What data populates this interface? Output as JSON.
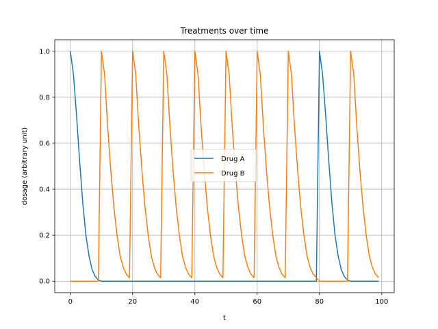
{
  "chart_data": {
    "type": "line",
    "title": "Treatments over time",
    "xlabel": "t",
    "ylabel": "dosage (arbitrary unit)",
    "xlim": [
      -5,
      104
    ],
    "ylim": [
      -0.05,
      1.05
    ],
    "xticks": [
      0,
      20,
      40,
      60,
      80,
      100
    ],
    "yticks": [
      0.0,
      0.2,
      0.4,
      0.6,
      0.8,
      1.0
    ],
    "xtick_labels": [
      "0",
      "20",
      "40",
      "60",
      "80",
      "100"
    ],
    "ytick_labels": [
      "0.0",
      "0.2",
      "0.4",
      "0.6",
      "0.8",
      "1.0"
    ],
    "grid": true,
    "legend_position": "center",
    "series": [
      {
        "name": "Drug A",
        "color": "#1f77b4",
        "x": [
          0,
          1,
          2,
          3,
          4,
          5,
          6,
          7,
          8,
          9,
          10,
          11,
          12,
          13,
          14,
          15,
          16,
          17,
          18,
          19,
          20,
          21,
          22,
          23,
          24,
          25,
          26,
          27,
          28,
          29,
          30,
          31,
          32,
          33,
          34,
          35,
          36,
          37,
          38,
          39,
          40,
          41,
          42,
          43,
          44,
          45,
          46,
          47,
          48,
          49,
          50,
          51,
          52,
          53,
          54,
          55,
          56,
          57,
          58,
          59,
          60,
          61,
          62,
          63,
          64,
          65,
          66,
          67,
          68,
          69,
          70,
          71,
          72,
          73,
          74,
          75,
          76,
          77,
          78,
          79,
          80,
          81,
          82,
          83,
          84,
          85,
          86,
          87,
          88,
          89,
          90,
          91,
          92,
          93,
          94,
          95,
          96,
          97,
          98,
          99
        ],
        "y": [
          1.0,
          0.9,
          0.72,
          0.52,
          0.34,
          0.2,
          0.11,
          0.05,
          0.02,
          0.005,
          0,
          0,
          0,
          0,
          0,
          0,
          0,
          0,
          0,
          0,
          0,
          0,
          0,
          0,
          0,
          0,
          0,
          0,
          0,
          0,
          0,
          0,
          0,
          0,
          0,
          0,
          0,
          0,
          0,
          0,
          0,
          0,
          0,
          0,
          0,
          0,
          0,
          0,
          0,
          0,
          0,
          0,
          0,
          0,
          0,
          0,
          0,
          0,
          0,
          0,
          0,
          0,
          0,
          0,
          0,
          0,
          0,
          0,
          0,
          0,
          0,
          0,
          0,
          0,
          0,
          0,
          0,
          0,
          0,
          0,
          1.0,
          0.9,
          0.72,
          0.52,
          0.34,
          0.2,
          0.11,
          0.05,
          0.02,
          0.005,
          0,
          0,
          0,
          0,
          0,
          0,
          0,
          0,
          0,
          0
        ]
      },
      {
        "name": "Drug B",
        "color": "#ff7f0e",
        "x": [
          0,
          1,
          2,
          3,
          4,
          5,
          6,
          7,
          8,
          9,
          10,
          11,
          12,
          13,
          14,
          15,
          16,
          17,
          18,
          19,
          20,
          21,
          22,
          23,
          24,
          25,
          26,
          27,
          28,
          29,
          30,
          31,
          32,
          33,
          34,
          35,
          36,
          37,
          38,
          39,
          40,
          41,
          42,
          43,
          44,
          45,
          46,
          47,
          48,
          49,
          50,
          51,
          52,
          53,
          54,
          55,
          56,
          57,
          58,
          59,
          60,
          61,
          62,
          63,
          64,
          65,
          66,
          67,
          68,
          69,
          70,
          71,
          72,
          73,
          74,
          75,
          76,
          77,
          78,
          79,
          80,
          81,
          82,
          83,
          84,
          85,
          86,
          87,
          88,
          89,
          90,
          91,
          92,
          93,
          94,
          95,
          96,
          97,
          98,
          99
        ],
        "y": [
          0,
          0,
          0,
          0,
          0,
          0,
          0,
          0,
          0,
          0,
          1.0,
          0.9,
          0.67,
          0.48,
          0.32,
          0.2,
          0.11,
          0.06,
          0.03,
          0.015,
          1.0,
          0.9,
          0.67,
          0.48,
          0.32,
          0.2,
          0.11,
          0.06,
          0.03,
          0.015,
          1.0,
          0.9,
          0.67,
          0.48,
          0.32,
          0.2,
          0.11,
          0.06,
          0.03,
          0.015,
          1.0,
          0.9,
          0.67,
          0.48,
          0.32,
          0.2,
          0.11,
          0.06,
          0.03,
          0.015,
          1.0,
          0.9,
          0.67,
          0.48,
          0.32,
          0.2,
          0.11,
          0.06,
          0.03,
          0.015,
          1.0,
          0.9,
          0.67,
          0.48,
          0.32,
          0.2,
          0.11,
          0.06,
          0.03,
          0.015,
          1.0,
          0.9,
          0.67,
          0.48,
          0.32,
          0.2,
          0.11,
          0.06,
          0.03,
          0.015,
          0,
          0,
          0,
          0,
          0,
          0,
          0,
          0,
          0,
          0,
          1.0,
          0.9,
          0.67,
          0.48,
          0.32,
          0.2,
          0.11,
          0.06,
          0.03,
          0.015
        ]
      }
    ]
  }
}
